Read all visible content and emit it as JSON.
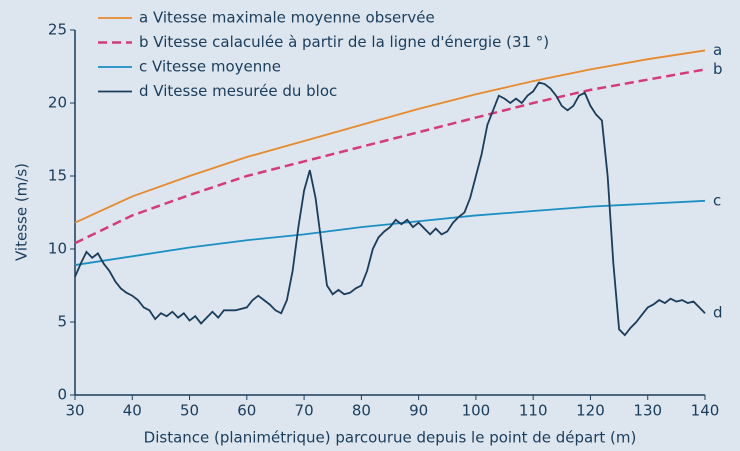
{
  "chart_data": {
    "type": "line",
    "xlabel": "Distance (planimétrique) parcourue depuis le point de départ (m)",
    "ylabel": "Vitesse (m/s)",
    "xlim": [
      30,
      140
    ],
    "xticks": [
      30,
      40,
      50,
      60,
      70,
      80,
      90,
      100,
      110,
      120,
      130,
      140
    ],
    "ylim": [
      0,
      25
    ],
    "yticks": [
      0,
      5,
      10,
      15,
      20,
      25
    ],
    "series": [
      {
        "name": "a Vitesse maximale moyenne observée",
        "label": "a",
        "color": "#e8892b",
        "dash": false,
        "x": [
          30,
          40,
          50,
          60,
          70,
          80,
          90,
          100,
          110,
          120,
          130,
          140
        ],
        "values": [
          11.8,
          13.6,
          15.0,
          16.3,
          17.4,
          18.5,
          19.6,
          20.6,
          21.5,
          22.3,
          23.0,
          23.6
        ]
      },
      {
        "name": "b Vitesse calaculée à partir de la ligne d'énergie (31 °)",
        "label": "b",
        "color": "#d63a7a",
        "dash": true,
        "x": [
          30,
          40,
          50,
          60,
          70,
          80,
          90,
          100,
          110,
          120,
          130,
          140
        ],
        "values": [
          10.4,
          12.3,
          13.7,
          15.0,
          16.0,
          17.0,
          18.0,
          19.0,
          20.0,
          20.9,
          21.6,
          22.3
        ]
      },
      {
        "name": "c Vitesse moyenne",
        "label": "c",
        "color": "#1a8fc4",
        "dash": false,
        "x": [
          30,
          40,
          50,
          60,
          70,
          80,
          90,
          100,
          110,
          120,
          130,
          140
        ],
        "values": [
          8.9,
          9.5,
          10.1,
          10.6,
          11.0,
          11.5,
          11.9,
          12.3,
          12.6,
          12.9,
          13.1,
          13.3
        ]
      },
      {
        "name": "d Vitesse mesurée du bloc",
        "label": "d",
        "color": "#1a3d5c",
        "dash": false,
        "x": [
          30,
          31,
          32,
          33,
          34,
          35,
          36,
          37,
          38,
          39,
          40,
          41,
          42,
          43,
          44,
          45,
          46,
          47,
          48,
          49,
          50,
          51,
          52,
          53,
          54,
          55,
          56,
          58,
          60,
          61,
          62,
          63,
          64,
          65,
          66,
          67,
          68,
          69,
          70,
          71,
          72,
          73,
          74,
          75,
          76,
          77,
          78,
          79,
          80,
          81,
          82,
          83,
          84,
          85,
          86,
          87,
          88,
          89,
          90,
          91,
          92,
          93,
          94,
          95,
          96,
          97,
          98,
          99,
          100,
          101,
          102,
          103,
          104,
          105,
          106,
          107,
          108,
          109,
          110,
          111,
          112,
          113,
          114,
          115,
          116,
          117,
          118,
          119,
          120,
          121,
          122,
          123,
          124,
          125,
          126,
          127,
          128,
          129,
          130,
          131,
          132,
          133,
          134,
          135,
          136,
          137,
          138,
          139,
          140
        ],
        "values": [
          8.1,
          9.0,
          9.8,
          9.4,
          9.7,
          9.0,
          8.5,
          7.8,
          7.3,
          7.0,
          6.8,
          6.5,
          6.0,
          5.8,
          5.2,
          5.6,
          5.4,
          5.7,
          5.3,
          5.6,
          5.1,
          5.4,
          4.9,
          5.3,
          5.7,
          5.3,
          5.8,
          5.8,
          6.0,
          6.5,
          6.8,
          6.5,
          6.2,
          5.8,
          5.6,
          6.5,
          8.5,
          11.5,
          14.0,
          15.4,
          13.5,
          10.5,
          7.5,
          6.9,
          7.2,
          6.9,
          7.0,
          7.3,
          7.5,
          8.5,
          10.0,
          10.8,
          11.2,
          11.5,
          12.0,
          11.7,
          12.0,
          11.5,
          11.8,
          11.4,
          11.0,
          11.4,
          11.0,
          11.2,
          11.8,
          12.2,
          12.5,
          13.5,
          15.0,
          16.5,
          18.5,
          19.5,
          20.5,
          20.3,
          20.0,
          20.3,
          20.0,
          20.5,
          20.8,
          21.4,
          21.3,
          21.0,
          20.5,
          19.8,
          19.5,
          19.8,
          20.5,
          20.7,
          19.8,
          19.2,
          18.8,
          15.0,
          9.0,
          4.5,
          4.1,
          4.6,
          5.0,
          5.5,
          6.0,
          6.2,
          6.5,
          6.3,
          6.6,
          6.4,
          6.5,
          6.3,
          6.4,
          6.0,
          5.6
        ]
      }
    ]
  }
}
